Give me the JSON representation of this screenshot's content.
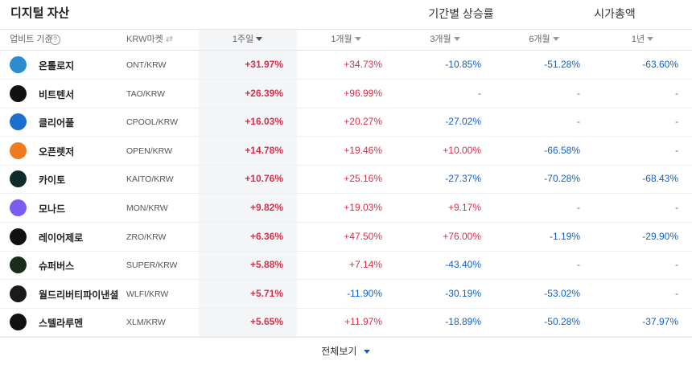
{
  "header": {
    "title": "디지털 자산",
    "tabs": [
      {
        "label": "기간별 상승률",
        "active": true
      },
      {
        "label": "시가총액",
        "active": false
      }
    ]
  },
  "column_header": {
    "basis": "업비트 기준",
    "help": "?",
    "market": "KRW마켓",
    "periods": [
      "1주일",
      "1개월",
      "3개월",
      "6개월",
      "1년"
    ],
    "sorted_period": 0
  },
  "table": {
    "rows": [
      [
        "온톨로지",
        "ONT/KRW",
        "+31.97%",
        "+34.73%",
        "-10.85%",
        "-51.28%",
        "-63.60%"
      ],
      [
        "비트텐서",
        "TAO/KRW",
        "+26.39%",
        "+96.99%",
        "-",
        "-",
        "-"
      ],
      [
        "클리어풀",
        "CPOOL/KRW",
        "+16.03%",
        "+20.27%",
        "-27.02%",
        "-",
        "-"
      ],
      [
        "오픈렛저",
        "OPEN/KRW",
        "+14.78%",
        "+19.46%",
        "+10.00%",
        "-66.58%",
        "-"
      ],
      [
        "카이토",
        "KAITO/KRW",
        "+10.76%",
        "+25.16%",
        "-27.37%",
        "-70.28%",
        "-68.43%"
      ],
      [
        "모나드",
        "MON/KRW",
        "+9.82%",
        "+19.03%",
        "+9.17%",
        "-",
        "-"
      ],
      [
        "레이어제로",
        "ZRO/KRW",
        "+6.36%",
        "+47.50%",
        "+76.00%",
        "-1.19%",
        "-29.90%"
      ],
      [
        "슈퍼버스",
        "SUPER/KRW",
        "+5.88%",
        "+7.14%",
        "-43.40%",
        "-",
        "-"
      ],
      [
        "월드리버티파이낸셜",
        "WLFI/KRW",
        "+5.71%",
        "-11.90%",
        "-30.19%",
        "-53.02%",
        "-"
      ],
      [
        "스텔라루멘",
        "XLM/KRW",
        "+5.65%",
        "+11.97%",
        "-18.89%",
        "-50.28%",
        "-37.97%"
      ]
    ]
  },
  "footer": {
    "more": "전체보기"
  }
}
